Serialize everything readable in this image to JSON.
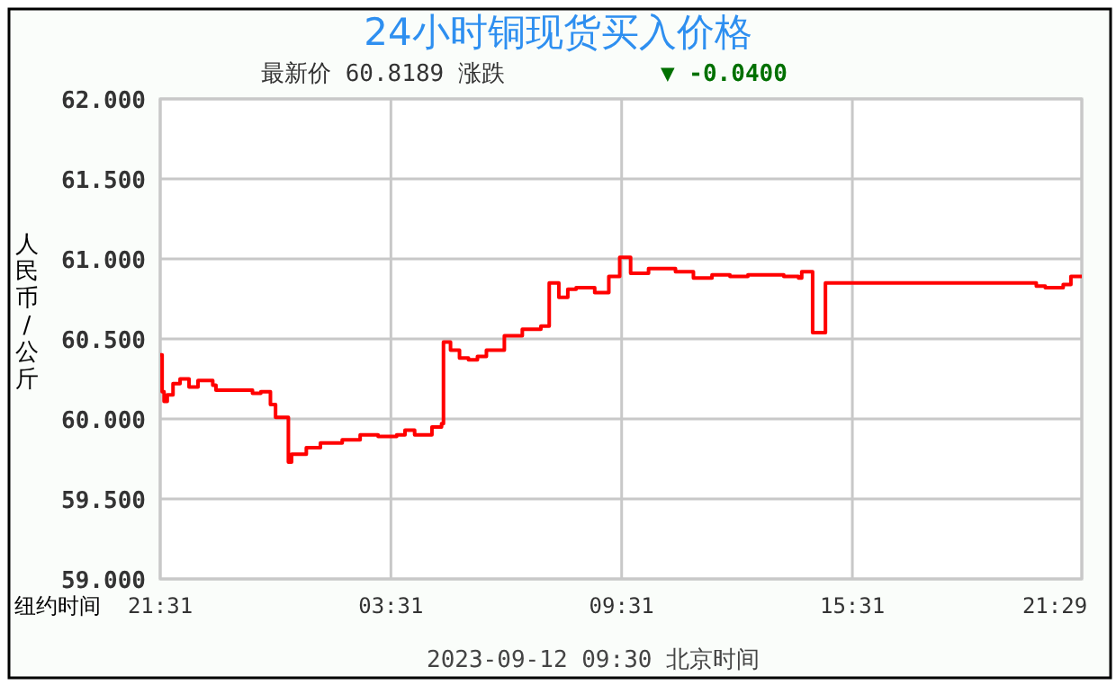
{
  "chart_data": {
    "type": "step",
    "title": "24小时铜现货买入价格",
    "subtitle": "最新价  60.8189    涨跌",
    "ylabel": "人民币/公斤",
    "xlabel": "纽约时间",
    "annotations": [
      "▼ -0.0400",
      "2023-09-12 09:30  北京时间"
    ],
    "x": [
      "2023-09-10T21:31",
      "2023-09-10T21:34",
      "2023-09-10T21:37",
      "2023-09-10T21:42",
      "2023-09-10T21:51",
      "2023-09-10T22:02",
      "2023-09-10T22:16",
      "2023-09-10T22:30",
      "2023-09-10T22:53",
      "2023-09-10T22:58",
      "2023-09-10T23:26",
      "2023-09-10T23:55",
      "2023-09-11T00:08",
      "2023-09-11T00:23",
      "2023-09-11T00:31",
      "2023-09-11T00:51",
      "2023-09-11T00:56",
      "2023-09-11T01:19",
      "2023-09-11T01:41",
      "2023-09-11T02:15",
      "2023-09-11T02:43",
      "2023-09-11T03:11",
      "2023-09-11T03:40",
      "2023-09-11T03:53",
      "2023-09-11T04:08",
      "2023-09-11T04:35",
      "2023-09-11T04:50",
      "2023-09-11T04:53",
      "2023-09-11T05:04",
      "2023-09-11T05:18",
      "2023-09-11T05:32",
      "2023-09-11T05:46",
      "2023-09-11T06:00",
      "2023-09-11T06:28",
      "2023-09-11T06:56",
      "2023-09-11T07:25",
      "2023-09-11T07:38",
      "2023-09-11T07:53",
      "2023-09-11T08:07",
      "2023-09-11T08:20",
      "2023-09-11T08:49",
      "2023-09-11T09:11",
      "2023-09-11T09:28",
      "2023-09-11T09:45",
      "2023-09-11T10:13",
      "2023-09-11T10:55",
      "2023-09-11T11:23",
      "2023-09-11T11:52",
      "2023-09-11T12:20",
      "2023-09-11T12:48",
      "2023-09-11T13:44",
      "2023-09-11T14:07",
      "2023-09-11T14:12",
      "2023-09-11T14:29",
      "2023-09-11T14:49",
      "2023-09-11T20:18",
      "2023-09-11T20:32",
      "2023-09-11T21:00",
      "2023-09-11T21:12",
      "2023-09-11T21:29"
    ],
    "series": [
      {
        "color": "#ff0000",
        "values": [
          60.4,
          60.17,
          60.11,
          60.15,
          60.22,
          60.25,
          60.2,
          60.24,
          60.21,
          60.18,
          60.18,
          60.16,
          60.17,
          60.09,
          60.01,
          59.73,
          59.78,
          59.82,
          59.85,
          59.87,
          59.9,
          59.89,
          59.9,
          59.93,
          59.9,
          59.95,
          59.97,
          60.48,
          60.43,
          60.38,
          60.37,
          60.39,
          60.43,
          60.52,
          60.56,
          60.58,
          60.85,
          60.76,
          60.81,
          60.82,
          60.79,
          60.89,
          61.01,
          60.91,
          60.94,
          60.92,
          60.88,
          60.9,
          60.89,
          60.9,
          60.89,
          60.88,
          60.92,
          60.54,
          60.85,
          60.83,
          60.82,
          60.84,
          60.89,
          60.89
        ]
      }
    ],
    "xlim": [
      "2023-09-10T21:31",
      "2023-09-11T21:29"
    ],
    "xticks": [
      {
        "value": "2023-09-10T21:31",
        "label": "21:31"
      },
      {
        "value": "2023-09-11T03:31",
        "label": "03:31"
      },
      {
        "value": "2023-09-11T09:31",
        "label": "09:31"
      },
      {
        "value": "2023-09-11T15:31",
        "label": "15:31"
      },
      {
        "value": "2023-09-11T21:29",
        "label": "21:29"
      }
    ],
    "ylim": [
      59,
      62
    ],
    "yticks": [
      {
        "value": 59,
        "label": "59.000"
      },
      {
        "value": 59.5,
        "label": "59.500"
      },
      {
        "value": 60,
        "label": "60.000"
      },
      {
        "value": 60.5,
        "label": "60.500"
      },
      {
        "value": 61,
        "label": "61.000"
      },
      {
        "value": 61.5,
        "label": "61.500"
      },
      {
        "value": 62,
        "label": "62.000"
      }
    ],
    "grid": true
  }
}
